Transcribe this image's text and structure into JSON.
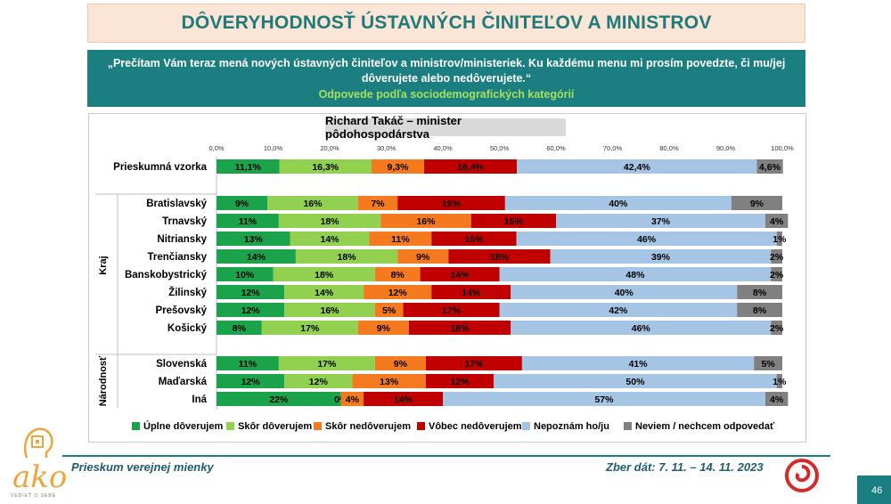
{
  "header": {
    "title": "DÔVERYHODNOSŤ ÚSTAVNÝCH ČINITEĽOV A MINISTROV",
    "question": "„Prečítam Vám teraz mená nových ústavných činiteľov a ministrov/ministeriek. Ku každému menu mi prosím povedzte, či mu/jej dôverujete alebo nedôverujete.“",
    "subtitle": "Odpovede podľa sociodemografických kategórií"
  },
  "colors": {
    "teal": "#1b7e80",
    "series": [
      "#1aa34a",
      "#92d050",
      "#f57a1f",
      "#c00000",
      "#a6c4e4",
      "#808080"
    ]
  },
  "chart_data": {
    "type": "bar",
    "orientation": "horizontal-stacked-100",
    "title": "Richard Takáč – minister pôdohospodárstva",
    "xlim": [
      0,
      100
    ],
    "xticks": [
      "0,0%",
      "10,0%",
      "20,0%",
      "30,0%",
      "40,0%",
      "50,0%",
      "60,0%",
      "70,0%",
      "80,0%",
      "90,0%",
      "100,0%"
    ],
    "series_names": [
      "Úplne dôverujem",
      "Skôr dôverujem",
      "Skôr nedôverujem",
      "Vôbec nedôverujem",
      "Nepoznám ho/ju",
      "Neviem / nechcem odpovedať"
    ],
    "groups": [
      {
        "label": "",
        "rows": [
          {
            "category": "Prieskumná vzorka",
            "values": [
              11.1,
              16.3,
              9.3,
              16.4,
              42.4,
              4.6
            ],
            "labels": [
              "11,1%",
              "16,3%",
              "9,3%",
              "16,4%",
              "42,4%",
              "4,6%"
            ]
          }
        ]
      },
      {
        "label": "Kraj",
        "rows": [
          {
            "category": "Bratislavský",
            "values": [
              9,
              16,
              7,
              19,
              40,
              9
            ],
            "labels": [
              "9%",
              "16%",
              "7%",
              "19%",
              "40%",
              "9%"
            ]
          },
          {
            "category": "Trnavský",
            "values": [
              11,
              18,
              16,
              15,
              37,
              4
            ],
            "labels": [
              "11%",
              "18%",
              "16%",
              "15%",
              "37%",
              "4%"
            ]
          },
          {
            "category": "Nitriansky",
            "values": [
              13,
              14,
              11,
              15,
              46,
              1
            ],
            "labels": [
              "13%",
              "14%",
              "11%",
              "15%",
              "46%",
              "1%"
            ]
          },
          {
            "category": "Trenčiansky",
            "values": [
              14,
              18,
              9,
              18,
              39,
              2
            ],
            "labels": [
              "14%",
              "18%",
              "9%",
              "18%",
              "39%",
              "2%"
            ]
          },
          {
            "category": "Banskobystrický",
            "values": [
              10,
              18,
              8,
              14,
              48,
              2
            ],
            "labels": [
              "10%",
              "18%",
              "8%",
              "14%",
              "48%",
              "2%"
            ]
          },
          {
            "category": "Žilinský",
            "values": [
              12,
              14,
              12,
              14,
              40,
              8
            ],
            "labels": [
              "12%",
              "14%",
              "12%",
              "14%",
              "40%",
              "8%"
            ]
          },
          {
            "category": "Prešovský",
            "values": [
              12,
              16,
              5,
              17,
              42,
              8
            ],
            "labels": [
              "12%",
              "16%",
              "5%",
              "17%",
              "42%",
              "8%"
            ]
          },
          {
            "category": "Košický",
            "values": [
              8,
              17,
              9,
              18,
              46,
              2
            ],
            "labels": [
              "8%",
              "17%",
              "9%",
              "18%",
              "46%",
              "2%"
            ]
          }
        ]
      },
      {
        "label": "Národnosť",
        "rows": [
          {
            "category": "Slovenská",
            "values": [
              11,
              17,
              9,
              17,
              41,
              5
            ],
            "labels": [
              "11%",
              "17%",
              "9%",
              "17%",
              "41%",
              "5%"
            ]
          },
          {
            "category": "Maďarská",
            "values": [
              12,
              12,
              13,
              12,
              50,
              1
            ],
            "labels": [
              "12%",
              "12%",
              "13%",
              "12%",
              "50%",
              "1%"
            ]
          },
          {
            "category": "Iná",
            "values": [
              22,
              0,
              4,
              14,
              57,
              4
            ],
            "labels": [
              "22%",
              "0%",
              "4%",
              "14%",
              "57%",
              "4%"
            ]
          }
        ]
      }
    ]
  },
  "footer": {
    "left": "Prieskum verejnej mienky",
    "right": "Zber dát: 7. 11. – 14. 11. 2023",
    "page": "46",
    "logo_text": "ako",
    "logo_tagline": "VEDIEŤ O SEBE"
  }
}
